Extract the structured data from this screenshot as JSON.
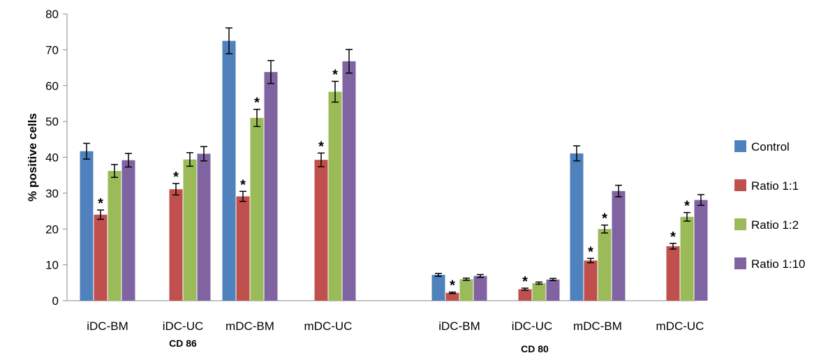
{
  "chart_data": {
    "type": "bar",
    "title": "",
    "xlabel": "",
    "ylabel": "% positive cells",
    "ylim": [
      0,
      80
    ],
    "yticks": [
      0,
      10,
      20,
      30,
      40,
      50,
      60,
      70,
      80
    ],
    "legend_position": "right",
    "grid": false,
    "groups": [
      {
        "label": "CD 86",
        "categories": [
          {
            "label": "iDC-BM",
            "values": [
              41.7,
              24.0,
              36.2,
              39.2
            ],
            "errors": [
              2.2,
              1.3,
              1.8,
              1.9
            ],
            "stars": [
              false,
              true,
              false,
              false
            ]
          },
          {
            "label": "iDC-UC",
            "values": [
              null,
              31.1,
              39.4,
              41.0
            ],
            "errors": [
              null,
              1.6,
              1.9,
              2.0
            ],
            "stars": [
              false,
              true,
              false,
              false
            ]
          },
          {
            "label": "mDC-BM",
            "values": [
              72.5,
              29.1,
              51.0,
              63.8
            ],
            "errors": [
              3.6,
              1.4,
              2.4,
              3.2
            ],
            "stars": [
              false,
              true,
              true,
              false
            ]
          },
          {
            "label": "mDC-UC",
            "values": [
              null,
              39.3,
              58.3,
              66.8
            ],
            "errors": [
              null,
              1.9,
              2.9,
              3.3
            ],
            "stars": [
              false,
              true,
              true,
              false
            ]
          }
        ]
      },
      {
        "label": "CD 80",
        "categories": [
          {
            "label": "iDC-BM",
            "values": [
              7.2,
              2.2,
              6.0,
              6.9
            ],
            "errors": [
              0.4,
              0.2,
              0.3,
              0.4
            ],
            "stars": [
              false,
              true,
              false,
              false
            ]
          },
          {
            "label": "iDC-UC",
            "values": [
              null,
              3.2,
              4.9,
              5.9
            ],
            "errors": [
              null,
              0.3,
              0.3,
              0.3
            ],
            "stars": [
              false,
              true,
              false,
              false
            ]
          },
          {
            "label": "mDC-BM",
            "values": [
              41.1,
              11.2,
              20.0,
              30.6
            ],
            "errors": [
              2.1,
              0.6,
              1.1,
              1.6
            ],
            "stars": [
              false,
              true,
              true,
              false
            ]
          },
          {
            "label": "mDC-UC",
            "values": [
              null,
              15.2,
              23.4,
              28.1
            ],
            "errors": [
              null,
              0.8,
              1.2,
              1.5
            ],
            "stars": [
              false,
              true,
              true,
              false
            ]
          }
        ]
      }
    ],
    "series": [
      {
        "name": "Control",
        "color": "#4f81bd"
      },
      {
        "name": "Ratio 1:1",
        "color": "#c0504d"
      },
      {
        "name": "Ratio 1:2",
        "color": "#9bbb59"
      },
      {
        "name": "Ratio 1:10",
        "color": "#8064a2"
      }
    ],
    "significance_marker": "*"
  }
}
